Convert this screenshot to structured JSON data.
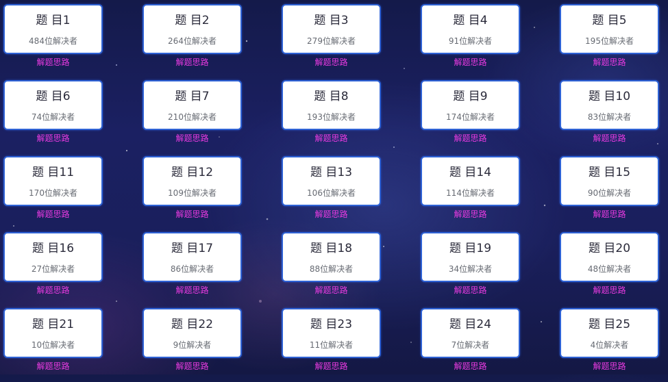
{
  "problems": [
    {
      "title": "题 目1",
      "solvers": "484位解决者",
      "hint": "解题思路"
    },
    {
      "title": "题 目2",
      "solvers": "264位解决者",
      "hint": "解题思路"
    },
    {
      "title": "题 目3",
      "solvers": "279位解决者",
      "hint": "解题思路"
    },
    {
      "title": "题 目4",
      "solvers": "91位解决者",
      "hint": "解题思路"
    },
    {
      "title": "题 目5",
      "solvers": "195位解决者",
      "hint": "解题思路"
    },
    {
      "title": "题 目6",
      "solvers": "74位解决者",
      "hint": "解题思路"
    },
    {
      "title": "题 目7",
      "solvers": "210位解决者",
      "hint": "解题思路"
    },
    {
      "title": "题 目8",
      "solvers": "193位解决者",
      "hint": "解题思路"
    },
    {
      "title": "题 目9",
      "solvers": "174位解决者",
      "hint": "解题思路"
    },
    {
      "title": "题 目10",
      "solvers": "83位解决者",
      "hint": "解题思路"
    },
    {
      "title": "题 目11",
      "solvers": "170位解决者",
      "hint": "解题思路"
    },
    {
      "title": "题 目12",
      "solvers": "109位解决者",
      "hint": "解题思路"
    },
    {
      "title": "题 目13",
      "solvers": "106位解决者",
      "hint": "解题思路"
    },
    {
      "title": "题 目14",
      "solvers": "114位解决者",
      "hint": "解题思路"
    },
    {
      "title": "题 目15",
      "solvers": "90位解决者",
      "hint": "解题思路"
    },
    {
      "title": "题 目16",
      "solvers": "27位解决者",
      "hint": "解题思路"
    },
    {
      "title": "题 目17",
      "solvers": "86位解决者",
      "hint": "解题思路"
    },
    {
      "title": "题 目18",
      "solvers": "88位解决者",
      "hint": "解题思路"
    },
    {
      "title": "题 目19",
      "solvers": "34位解决者",
      "hint": "解题思路"
    },
    {
      "title": "题 目20",
      "solvers": "48位解决者",
      "hint": "解题思路"
    },
    {
      "title": "题 目21",
      "solvers": "10位解决者",
      "hint": "解题思路"
    },
    {
      "title": "题 目22",
      "solvers": "9位解决者",
      "hint": "解题思路"
    },
    {
      "title": "题 目23",
      "solvers": "11位解决者",
      "hint": "解题思路"
    },
    {
      "title": "题 目24",
      "solvers": "7位解决者",
      "hint": "解题思路"
    },
    {
      "title": "题 目25",
      "solvers": "4位解决者",
      "hint": "解题思路"
    }
  ],
  "colors": {
    "card_border": "#2f63d6",
    "hint_link": "#e83ae0",
    "background": "#1b2062"
  }
}
